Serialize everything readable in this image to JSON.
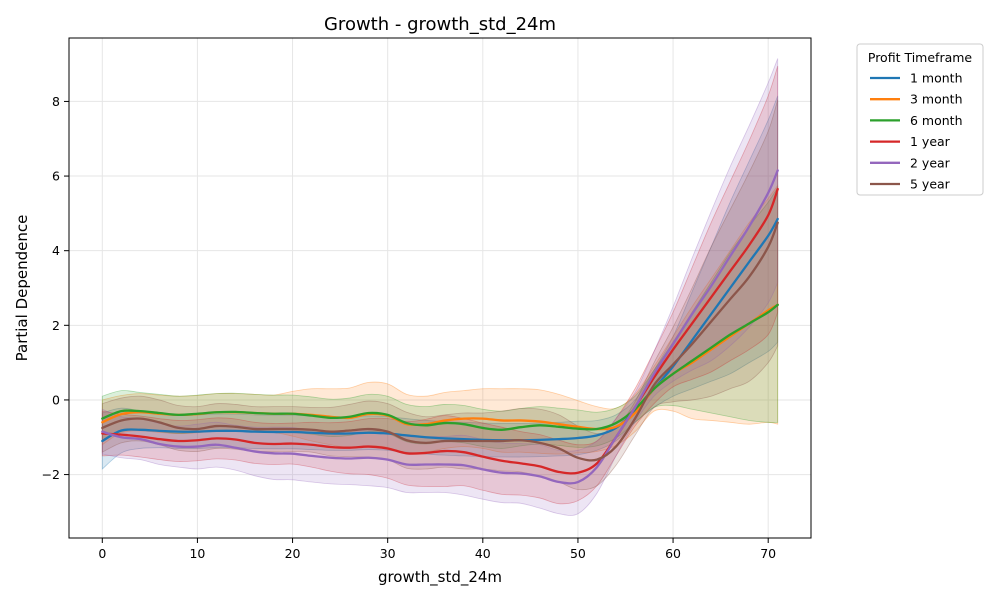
{
  "chart_data": {
    "type": "line",
    "title": "Growth - growth_std_24m",
    "xlabel": "growth_std_24m",
    "ylabel": "Partial Dependence",
    "xlim": [
      -3.5,
      74.5
    ],
    "ylim": [
      -3.7,
      9.7
    ],
    "x_ticks": [
      0,
      10,
      20,
      30,
      40,
      50,
      60,
      70
    ],
    "y_ticks": [
      -2,
      0,
      2,
      4,
      6,
      8
    ],
    "grid": true,
    "legend": {
      "title": "Profit Timeframe",
      "placement": "outside-right"
    },
    "x": [
      0,
      2,
      4,
      6,
      8,
      10,
      12,
      14,
      16,
      18,
      20,
      22,
      24,
      26,
      28,
      30,
      32,
      34,
      36,
      38,
      40,
      42,
      44,
      46,
      48,
      50,
      52,
      54,
      56,
      58,
      60,
      62,
      64,
      66,
      68,
      70,
      71
    ],
    "series": [
      {
        "name": "1 month",
        "color": "#1f77b4",
        "values": [
          -1.1,
          -0.82,
          -0.8,
          -0.83,
          -0.85,
          -0.85,
          -0.83,
          -0.83,
          -0.85,
          -0.86,
          -0.86,
          -0.88,
          -0.9,
          -0.9,
          -0.88,
          -0.9,
          -0.95,
          -1.0,
          -1.03,
          -1.05,
          -1.07,
          -1.08,
          -1.08,
          -1.07,
          -1.05,
          -1.02,
          -0.95,
          -0.75,
          -0.3,
          0.3,
          0.9,
          1.6,
          2.3,
          3.0,
          3.7,
          4.4,
          4.85
        ],
        "band": [
          0.75,
          0.6,
          0.5,
          0.45,
          0.45,
          0.45,
          0.45,
          0.45,
          0.45,
          0.45,
          0.45,
          0.45,
          0.45,
          0.45,
          0.45,
          0.45,
          0.45,
          0.45,
          0.45,
          0.45,
          0.45,
          0.45,
          0.45,
          0.45,
          0.45,
          0.45,
          0.4,
          0.35,
          0.3,
          0.5,
          0.8,
          1.3,
          1.8,
          2.3,
          2.7,
          3.1,
          3.3
        ]
      },
      {
        "name": "3 month",
        "color": "#ff7f0e",
        "values": [
          -0.6,
          -0.38,
          -0.33,
          -0.37,
          -0.4,
          -0.38,
          -0.33,
          -0.33,
          -0.35,
          -0.37,
          -0.37,
          -0.4,
          -0.45,
          -0.48,
          -0.38,
          -0.42,
          -0.65,
          -0.65,
          -0.55,
          -0.5,
          -0.5,
          -0.55,
          -0.55,
          -0.58,
          -0.65,
          -0.72,
          -0.78,
          -0.72,
          -0.35,
          0.3,
          0.7,
          1.0,
          1.35,
          1.7,
          2.05,
          2.4,
          2.55
        ],
        "band": [
          0.6,
          0.5,
          0.5,
          0.5,
          0.5,
          0.5,
          0.5,
          0.5,
          0.5,
          0.5,
          0.6,
          0.7,
          0.75,
          0.8,
          0.85,
          0.85,
          0.8,
          0.75,
          0.75,
          0.75,
          0.8,
          0.85,
          0.85,
          0.85,
          0.8,
          0.7,
          0.6,
          0.5,
          0.5,
          0.6,
          1.0,
          1.5,
          1.9,
          2.3,
          2.7,
          3.0,
          3.2
        ]
      },
      {
        "name": "6 month",
        "color": "#2ca02c",
        "values": [
          -0.5,
          -0.3,
          -0.3,
          -0.35,
          -0.4,
          -0.37,
          -0.33,
          -0.32,
          -0.35,
          -0.37,
          -0.37,
          -0.42,
          -0.48,
          -0.45,
          -0.35,
          -0.4,
          -0.62,
          -0.68,
          -0.62,
          -0.65,
          -0.75,
          -0.8,
          -0.73,
          -0.68,
          -0.72,
          -0.77,
          -0.78,
          -0.62,
          -0.25,
          0.3,
          0.7,
          1.05,
          1.4,
          1.75,
          2.05,
          2.35,
          2.55
        ],
        "band": [
          0.6,
          0.55,
          0.5,
          0.5,
          0.5,
          0.5,
          0.5,
          0.5,
          0.5,
          0.5,
          0.5,
          0.5,
          0.5,
          0.5,
          0.5,
          0.5,
          0.5,
          0.5,
          0.5,
          0.5,
          0.5,
          0.5,
          0.5,
          0.5,
          0.5,
          0.5,
          0.45,
          0.4,
          0.35,
          0.5,
          0.85,
          1.3,
          1.75,
          2.2,
          2.6,
          2.95,
          3.15
        ]
      },
      {
        "name": "1 year",
        "color": "#d62728",
        "values": [
          -0.9,
          -0.93,
          -0.98,
          -1.05,
          -1.1,
          -1.08,
          -1.03,
          -1.06,
          -1.15,
          -1.18,
          -1.17,
          -1.2,
          -1.26,
          -1.28,
          -1.25,
          -1.3,
          -1.43,
          -1.42,
          -1.37,
          -1.4,
          -1.52,
          -1.63,
          -1.7,
          -1.78,
          -1.93,
          -1.95,
          -1.7,
          -1.0,
          -0.2,
          0.6,
          1.35,
          2.05,
          2.75,
          3.45,
          4.15,
          4.95,
          5.65
        ],
        "band": [
          0.6,
          0.55,
          0.55,
          0.55,
          0.55,
          0.55,
          0.55,
          0.55,
          0.55,
          0.55,
          0.55,
          0.6,
          0.65,
          0.7,
          0.75,
          0.8,
          0.85,
          0.9,
          0.95,
          0.9,
          0.9,
          0.9,
          0.85,
          0.85,
          0.85,
          0.75,
          0.6,
          0.5,
          0.5,
          0.7,
          1.0,
          1.5,
          2.0,
          2.4,
          2.8,
          3.2,
          3.3
        ]
      },
      {
        "name": "2 year",
        "color": "#9467bd",
        "values": [
          -0.85,
          -1.0,
          -1.05,
          -1.18,
          -1.25,
          -1.25,
          -1.2,
          -1.28,
          -1.38,
          -1.43,
          -1.44,
          -1.5,
          -1.55,
          -1.57,
          -1.55,
          -1.6,
          -1.73,
          -1.73,
          -1.73,
          -1.75,
          -1.86,
          -1.95,
          -1.97,
          -2.05,
          -2.2,
          -2.2,
          -1.8,
          -1.0,
          -0.2,
          0.7,
          1.5,
          2.3,
          3.05,
          3.85,
          4.65,
          5.55,
          6.15
        ],
        "band": [
          0.6,
          0.55,
          0.55,
          0.55,
          0.55,
          0.6,
          0.6,
          0.6,
          0.65,
          0.7,
          0.7,
          0.7,
          0.7,
          0.7,
          0.75,
          0.75,
          0.75,
          0.75,
          0.75,
          0.8,
          0.8,
          0.8,
          0.8,
          0.85,
          0.85,
          0.85,
          0.7,
          0.5,
          0.4,
          0.6,
          1.0,
          1.5,
          2.0,
          2.4,
          2.7,
          2.95,
          3.0
        ]
      },
      {
        "name": "5 year",
        "color": "#8c564b",
        "values": [
          -0.75,
          -0.55,
          -0.5,
          -0.6,
          -0.75,
          -0.78,
          -0.7,
          -0.72,
          -0.78,
          -0.78,
          -0.78,
          -0.8,
          -0.85,
          -0.82,
          -0.78,
          -0.85,
          -1.08,
          -1.15,
          -1.1,
          -1.1,
          -1.1,
          -1.1,
          -1.08,
          -1.15,
          -1.3,
          -1.55,
          -1.6,
          -1.25,
          -0.5,
          0.4,
          0.95,
          1.5,
          2.1,
          2.7,
          3.3,
          4.1,
          4.75
        ],
        "band": [
          0.65,
          0.6,
          0.6,
          0.6,
          0.6,
          0.6,
          0.6,
          0.6,
          0.6,
          0.6,
          0.6,
          0.6,
          0.65,
          0.7,
          0.75,
          0.75,
          0.75,
          0.7,
          0.7,
          0.75,
          0.75,
          0.8,
          0.85,
          0.9,
          0.9,
          0.85,
          0.7,
          0.5,
          0.45,
          0.6,
          1.0,
          1.5,
          2.0,
          2.4,
          2.8,
          3.1,
          3.3
        ]
      }
    ]
  }
}
